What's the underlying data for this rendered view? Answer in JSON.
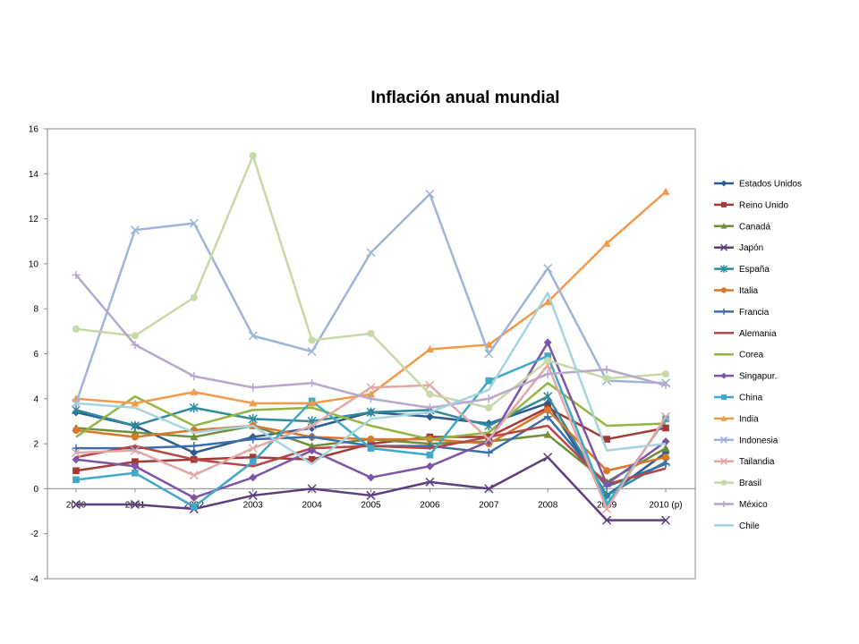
{
  "chart_data": {
    "type": "line",
    "title": "Inflación anual mundial",
    "xlabel": "",
    "ylabel": "",
    "ylim": [
      -4,
      16
    ],
    "yticks": [
      -4,
      -2,
      0,
      2,
      4,
      6,
      8,
      10,
      12,
      14,
      16
    ],
    "categories": [
      "2000",
      "2001",
      "2002",
      "2003",
      "2004",
      "2005",
      "2006",
      "2007",
      "2008",
      "2009",
      "2010 (p)"
    ],
    "grid": false,
    "legend_position": "right",
    "series": [
      {
        "name": "Estados Unidos",
        "color": "#2E5B8E",
        "marker": "diamond",
        "values": [
          3.4,
          2.8,
          1.6,
          2.3,
          2.7,
          3.4,
          3.2,
          2.9,
          3.8,
          -0.3,
          1.6
        ]
      },
      {
        "name": "Reino Unido",
        "color": "#A33A36",
        "marker": "square",
        "values": [
          0.8,
          1.2,
          1.3,
          1.4,
          1.3,
          2.0,
          2.3,
          2.3,
          3.6,
          2.2,
          2.7
        ]
      },
      {
        "name": "Canadá",
        "color": "#6F8E3A",
        "marker": "triangle",
        "values": [
          2.7,
          2.5,
          2.3,
          2.8,
          1.9,
          2.2,
          2.0,
          2.1,
          2.4,
          0.3,
          1.8
        ]
      },
      {
        "name": "Japón",
        "color": "#5C3D7E",
        "marker": "x",
        "values": [
          -0.7,
          -0.7,
          -0.9,
          -0.3,
          0.0,
          -0.3,
          0.3,
          0.0,
          1.4,
          -1.4,
          -1.4
        ]
      },
      {
        "name": "España",
        "color": "#2F8A9E",
        "marker": "star",
        "values": [
          3.5,
          2.8,
          3.6,
          3.1,
          3.0,
          3.4,
          3.5,
          2.8,
          4.1,
          -0.3,
          1.2
        ]
      },
      {
        "name": "Italia",
        "color": "#D9772B",
        "marker": "circle",
        "values": [
          2.6,
          2.3,
          2.6,
          2.8,
          2.3,
          2.2,
          2.2,
          2.0,
          3.5,
          0.8,
          1.4
        ]
      },
      {
        "name": "Francia",
        "color": "#3A6EAE",
        "marker": "plus",
        "values": [
          1.8,
          1.8,
          1.9,
          2.2,
          2.3,
          1.9,
          1.9,
          1.6,
          3.2,
          0.1,
          1.1
        ]
      },
      {
        "name": "Alemania",
        "color": "#B64744",
        "marker": "none",
        "values": [
          1.4,
          1.9,
          1.3,
          1.0,
          1.8,
          1.9,
          1.8,
          2.3,
          2.8,
          0.2,
          0.9
        ]
      },
      {
        "name": "Corea",
        "color": "#93B543",
        "marker": "none",
        "values": [
          2.3,
          4.1,
          2.8,
          3.5,
          3.6,
          2.8,
          2.2,
          2.5,
          4.7,
          2.8,
          2.9
        ]
      },
      {
        "name": "Singapur.",
        "color": "#7D55A6",
        "marker": "diamond",
        "values": [
          1.3,
          1.0,
          -0.4,
          0.5,
          1.7,
          0.5,
          1.0,
          2.1,
          6.5,
          0.2,
          2.1
        ]
      },
      {
        "name": "China",
        "color": "#40A8C8",
        "marker": "square",
        "values": [
          0.4,
          0.7,
          -0.8,
          1.2,
          3.9,
          1.8,
          1.5,
          4.8,
          5.9,
          -0.7,
          3.1
        ]
      },
      {
        "name": "India",
        "color": "#F39A4A",
        "marker": "triangle",
        "values": [
          4.0,
          3.8,
          4.3,
          3.8,
          3.8,
          4.2,
          6.2,
          6.4,
          8.3,
          10.9,
          13.2
        ]
      },
      {
        "name": "Indonesia",
        "color": "#9EB4D8",
        "marker": "x",
        "values": [
          3.8,
          11.5,
          11.8,
          6.8,
          6.1,
          10.5,
          13.1,
          6.0,
          9.8,
          4.8,
          4.7
        ]
      },
      {
        "name": "Tailandia",
        "color": "#E3A7A4",
        "marker": "x",
        "values": [
          1.6,
          1.7,
          0.6,
          1.8,
          2.8,
          4.5,
          4.6,
          2.2,
          5.5,
          -0.9,
          3.2
        ]
      },
      {
        "name": "Brasil",
        "color": "#C6D9A6",
        "marker": "circle",
        "values": [
          7.1,
          6.8,
          8.5,
          14.8,
          6.6,
          6.9,
          4.2,
          3.6,
          5.7,
          4.9,
          5.1
        ]
      },
      {
        "name": "México",
        "color": "#B7A7CC",
        "marker": "plus",
        "values": [
          9.5,
          6.4,
          5.0,
          4.5,
          4.7,
          4.0,
          3.6,
          4.0,
          5.1,
          5.3,
          4.6
        ]
      },
      {
        "name": "Chile",
        "color": "#A5D3E0",
        "marker": "none",
        "values": [
          3.8,
          3.6,
          2.5,
          2.8,
          1.1,
          3.1,
          3.4,
          4.4,
          8.7,
          1.7,
          2.0
        ]
      }
    ]
  }
}
